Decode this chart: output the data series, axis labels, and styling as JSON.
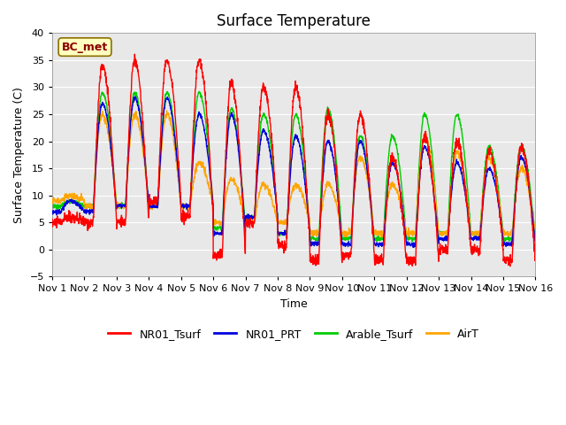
{
  "title": "Surface Temperature",
  "xlabel": "Time",
  "ylabel": "Surface Temperature (C)",
  "ylim": [
    -5,
    40
  ],
  "yticks": [
    -5,
    0,
    5,
    10,
    15,
    20,
    25,
    30,
    35,
    40
  ],
  "xtick_labels": [
    "Nov 1",
    "Nov 2",
    "Nov 3",
    "Nov 4",
    "Nov 5",
    "Nov 6",
    "Nov 7",
    "Nov 8",
    "Nov 9",
    "Nov 10",
    "Nov 11",
    "Nov 12",
    "Nov 13",
    "Nov 14",
    "Nov 15",
    "Nov 16"
  ],
  "annotation_text": "BC_met",
  "annotation_color_fg": "#8B0000",
  "annotation_color_bg": "#FFFFC0",
  "colors": {
    "NR01_Tsurf": "#FF0000",
    "NR01_PRT": "#0000DD",
    "Arable_Tsurf": "#00CC00",
    "AirT": "#FFA500"
  },
  "plot_bg_color": "#E8E8E8",
  "grid_color": "#FFFFFF",
  "title_fontsize": 12,
  "label_fontsize": 9,
  "tick_fontsize": 8,
  "nr01_peaks": [
    6,
    34,
    35,
    35,
    35,
    31,
    30,
    30,
    25,
    25,
    17,
    21,
    20,
    18,
    19,
    5
  ],
  "nr01_mins": [
    5,
    5,
    5,
    9,
    6,
    -1,
    5,
    1,
    -2,
    -1,
    -2,
    -2,
    0,
    0,
    -2,
    3
  ],
  "prt_peaks": [
    9,
    27,
    28,
    28,
    25,
    25,
    22,
    21,
    20,
    20,
    16,
    19,
    16,
    15,
    17,
    5
  ],
  "prt_mins": [
    7,
    7,
    8,
    8,
    8,
    3,
    6,
    3,
    1,
    1,
    1,
    1,
    2,
    2,
    1,
    3
  ],
  "ar_peaks": [
    9,
    29,
    29,
    29,
    29,
    26,
    25,
    25,
    26,
    21,
    21,
    25,
    25,
    19,
    19,
    19
  ],
  "ar_mins": [
    8,
    8,
    8,
    8,
    8,
    4,
    6,
    3,
    2,
    2,
    2,
    2,
    3,
    3,
    2,
    3
  ],
  "air_peaks": [
    10,
    25,
    25,
    25,
    16,
    13,
    12,
    12,
    12,
    17,
    12,
    21,
    18,
    17,
    15,
    15
  ],
  "air_mins": [
    9,
    8,
    8,
    8,
    8,
    5,
    5,
    5,
    3,
    3,
    3,
    3,
    3,
    3,
    3,
    4
  ]
}
